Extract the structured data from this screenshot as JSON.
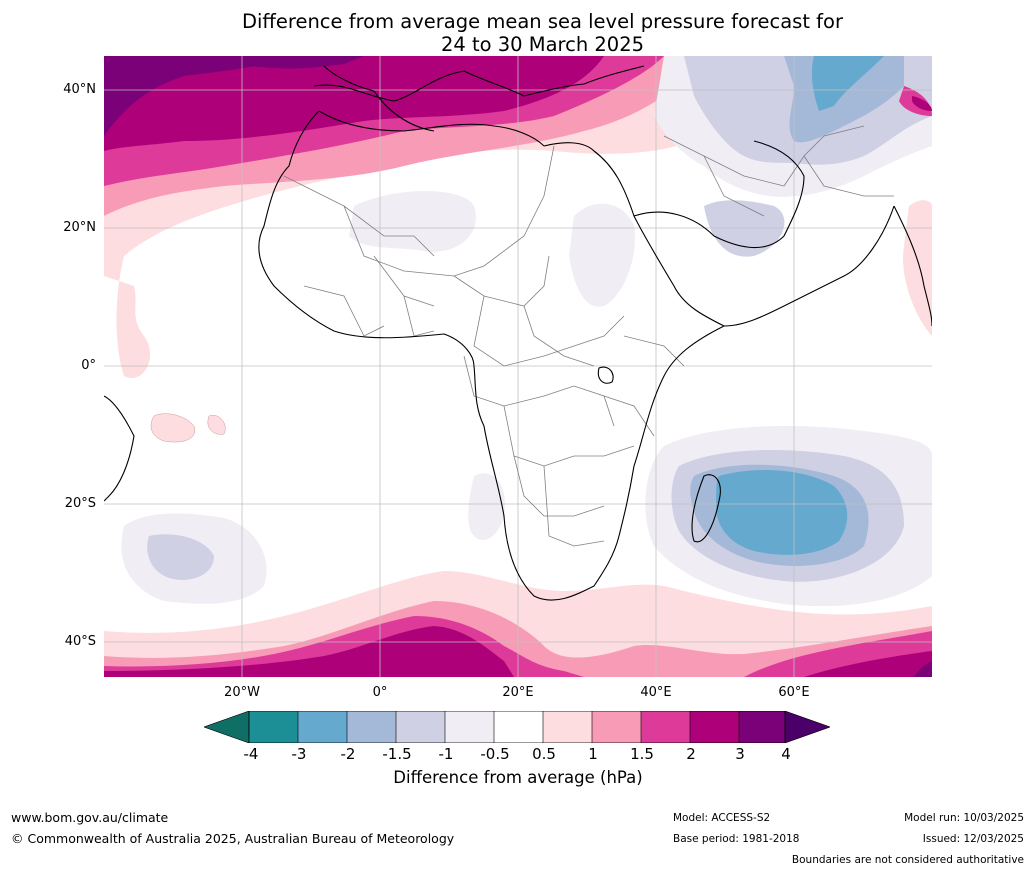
{
  "title_line1": "Difference from average mean sea level pressure forecast for",
  "title_line2": "24 to 30 March 2025",
  "lat_labels": [
    "40°N",
    "20°N",
    "0°",
    "20°S",
    "40°S"
  ],
  "lon_labels": [
    "20°W",
    "0°",
    "20°E",
    "40°E",
    "60°E"
  ],
  "colorbar": {
    "ticks": [
      "-4",
      "-3",
      "-2",
      "-1.5",
      "-1",
      "-0.5",
      "0.5",
      "1",
      "1.5",
      "2",
      "3",
      "4"
    ],
    "colors": [
      "#0f6e66",
      "#1b8e96",
      "#65a9cf",
      "#a4b8d8",
      "#cfd0e4",
      "#f1edf4",
      "#ffffff",
      "#fddddf",
      "#f89bb6",
      "#dd3a9a",
      "#ae0179",
      "#7a0177",
      "#4a0068"
    ],
    "label": "Difference from average (hPa)"
  },
  "footer": {
    "website": "www.bom.gov.au/climate",
    "copyright": "© Commonwealth of Australia 2025, Australian Bureau of Meteorology",
    "model": "Model: ACCESS-S2",
    "base_period": "Base period: 1981-2018",
    "model_run": "Model run: 10/03/2025",
    "issued": "Issued: 12/03/2025",
    "disclaimer": "Boundaries are not considered authoritative"
  },
  "map_layers": [
    "pressure-anomaly-fill",
    "coastlines",
    "country-borders",
    "graticule"
  ]
}
